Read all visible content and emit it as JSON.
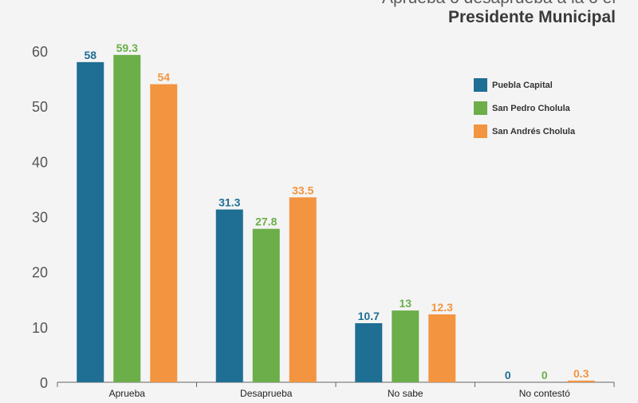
{
  "title": {
    "line1": "Aprueba o desaprueba a la o el",
    "line2": "Presidente Municipal"
  },
  "colors": {
    "Puebla Capital": "#1f6e93",
    "San Pedro Cholula": "#6cae4a",
    "San Andrés Cholula": "#f39440"
  },
  "chart_data": {
    "type": "bar",
    "title": "Aprueba o desaprueba a la o el Presidente Municipal",
    "categories": [
      "Aprueba",
      "Desaprueba",
      "No sabe",
      "No contestó"
    ],
    "series": [
      {
        "name": "Puebla Capital",
        "values": [
          58,
          31.3,
          10.7,
          0
        ]
      },
      {
        "name": "San Pedro Cholula",
        "values": [
          59.3,
          27.8,
          13,
          0
        ]
      },
      {
        "name": "San Andrés Cholula",
        "values": [
          54,
          33.5,
          12.3,
          0.3
        ]
      }
    ],
    "y_ticks": [
      "0",
      "10",
      "20",
      "30",
      "40",
      "50",
      "60"
    ],
    "value_labels": [
      [
        "58",
        "31.3",
        "10.7",
        "0"
      ],
      [
        "59.3",
        "27.8",
        "13",
        "0"
      ],
      [
        "54",
        "33.5",
        "12.3",
        "0.3"
      ]
    ],
    "ylim": [
      0,
      60
    ],
    "grid": false,
    "legend_position": "top-right"
  }
}
